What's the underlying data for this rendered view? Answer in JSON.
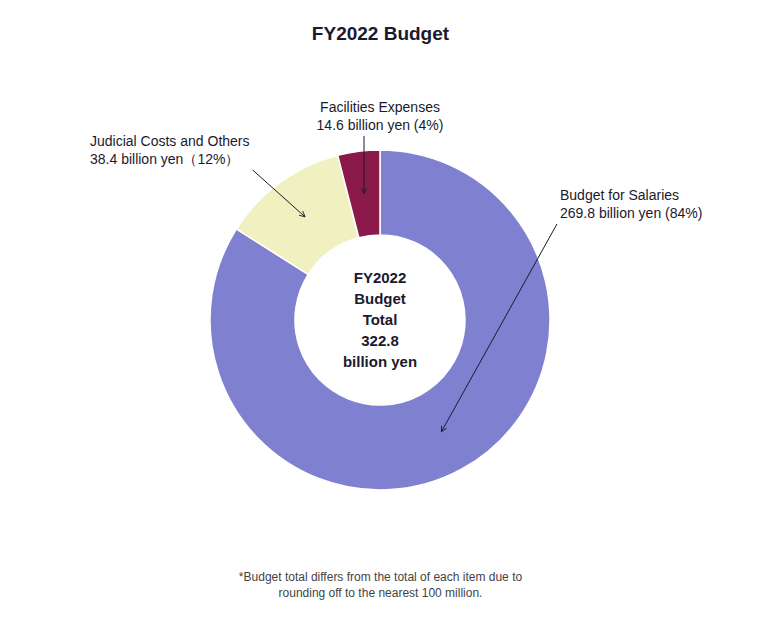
{
  "chart_data": {
    "type": "pie",
    "title": "FY2022 Budget",
    "values": [
      84,
      12,
      4
    ],
    "colors": [
      "#8080d0",
      "#f0f0c0",
      "#8b1a4a"
    ],
    "center_text": "FY2022\nBudget\nTotal\n322.8\nbillion yen",
    "annotations": [
      "Budget for Salaries\n269.8 billion yen (84%)",
      "Judicial Costs and Others\n38.4 billion yen（12%）",
      "Facilities Expenses\n14.6 billion yen (4%)"
    ],
    "footnote": "*Budget total differs from the total of each item due to\nrounding off to the nearest 100 million."
  }
}
